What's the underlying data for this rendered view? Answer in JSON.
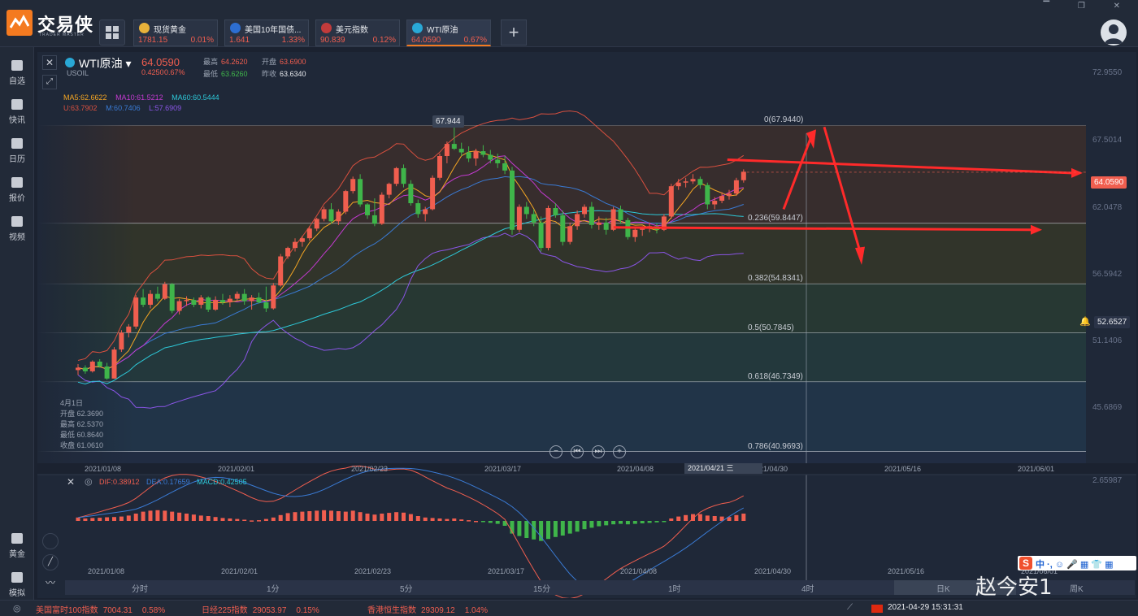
{
  "app": {
    "name": "交易侠",
    "subtitle": "TRADER MASTER",
    "window_controls": "▔ ❐ ✕"
  },
  "tickers": [
    {
      "name": "现货黄金",
      "price": "1781.15",
      "change": "0.01%",
      "icon_color": "#e8b23a"
    },
    {
      "name": "美国10年国债...",
      "price": "1.641",
      "change": "1.33%",
      "icon_color": "#2d6ed1"
    },
    {
      "name": "美元指数",
      "price": "90.839",
      "change": "0.12%",
      "icon_color": "#c23b3b"
    },
    {
      "name": "WTI原油",
      "price": "64.0590",
      "change": "0.67%",
      "icon_color": "#29a8d6"
    }
  ],
  "add_tab": "+",
  "nav": [
    {
      "label": "自选"
    },
    {
      "label": "快讯"
    },
    {
      "label": "日历"
    },
    {
      "label": "报价"
    },
    {
      "label": "视频"
    },
    {
      "label": "黄金"
    },
    {
      "label": "模拟"
    }
  ],
  "symbol": {
    "name": "WTI原油 ▾",
    "code": "USOIL",
    "last": "64.0590",
    "change_abs": "0.4250",
    "change_pct": "0.67%",
    "high_label": "最高",
    "high": "64.2620",
    "open_label": "开盘",
    "open": "63.6900",
    "low_label": "最低",
    "low": "63.6260",
    "prev_label": "昨收",
    "prev": "63.6340"
  },
  "ma": {
    "ma5": "MA5:62.6622",
    "ma10": "MA10:61.5212",
    "ma60": "MA60:60.5444",
    "u": "U:63.7902",
    "m": "M:60.7406",
    "l": "L:57.6909"
  },
  "peak_label": "67.944",
  "fib": [
    {
      "label": "0(67.9440)",
      "price": 67.944
    },
    {
      "label": "0.236(59.8447)",
      "price": 59.8447
    },
    {
      "label": "0.382(54.8341)",
      "price": 54.8341
    },
    {
      "label": "0.5(50.7845)",
      "price": 50.7845
    },
    {
      "label": "0.618(46.7349)",
      "price": 46.7349
    },
    {
      "label": "0.786(40.9693)",
      "price": 40.9693
    }
  ],
  "y_axis": [
    "72.9550",
    "67.5014",
    "62.0478",
    "56.5942",
    "51.1406",
    "45.6869"
  ],
  "current_price_tag": "64.0590",
  "alert_price_tag": "52.6527",
  "hover": {
    "date": "4月1日",
    "open": "开盘 62.3690",
    "high": "最高 62.5370",
    "low": "最低 60.8640",
    "close": "收盘 61.0610"
  },
  "nav_controls": [
    "−",
    "⏮",
    "⏭",
    "+"
  ],
  "x_dates": [
    "2021/01/08",
    "2021/02/01",
    "2021/02/23",
    "2021/03/17",
    "2021/04/08",
    "2021/04/30",
    "2021/05/16",
    "2021/06/01"
  ],
  "crosshair_date": "2021/04/21 三",
  "macd": {
    "close": "✕",
    "settings": "◎",
    "dif": "DIF:0.38912",
    "dea": "DEA:0.17659",
    "macd": "MACD:0.42505",
    "top": "2.65987"
  },
  "macd_dates": [
    "2021/01/08",
    "2021/02/01",
    "2021/02/23",
    "2021/03/17",
    "2021/04/08",
    "2021/04/30",
    "2021/05/16",
    "2021/06/01"
  ],
  "periods": [
    "分时",
    "1分",
    "5分",
    "15分",
    "1时",
    "4时",
    "日K",
    "周K"
  ],
  "status": [
    {
      "name": "美国富时100指数",
      "value": "7004.31",
      "change": "0.58%"
    },
    {
      "name": "日经225指数",
      "value": "29053.97",
      "change": "0.15%"
    },
    {
      "name": "香港恒生指数",
      "value": "29309.12",
      "change": "1.04%"
    }
  ],
  "datetime": "2021-04-29 15:31:31",
  "watermark": "赵今安1",
  "ime": {
    "s": "S",
    "zh": "中 ·, ☺ 🎤 ▦ 👕 ▦"
  },
  "colors": {
    "up": "#f05e4f",
    "down": "#3fb54a",
    "accent": "#f47a20",
    "ma5": "#f5a623",
    "ma10": "#c43ad1",
    "ma60": "#2dc8d8",
    "boll_u": "#d9503f",
    "boll_m": "#3a7bd5",
    "boll_l": "#8a55e6"
  },
  "chart_data": {
    "type": "candlestick",
    "title": "WTI原油",
    "x_start": "2021/01/05",
    "ylim": [
      40.0,
      74.0
    ],
    "fib_high": 67.944,
    "candles": [
      [
        47.7,
        48.2,
        47.3,
        47.9
      ],
      [
        47.9,
        48.1,
        47.4,
        47.6
      ],
      [
        47.6,
        48.5,
        47.5,
        48.4
      ],
      [
        48.4,
        48.6,
        47.9,
        48.0
      ],
      [
        48.0,
        48.3,
        46.9,
        47.0
      ],
      [
        47.0,
        49.6,
        47.0,
        49.4
      ],
      [
        49.4,
        51.0,
        49.2,
        50.8
      ],
      [
        50.8,
        51.5,
        50.4,
        51.3
      ],
      [
        51.3,
        53.9,
        51.1,
        53.7
      ],
      [
        53.7,
        54.4,
        52.9,
        53.1
      ],
      [
        53.1,
        54.3,
        52.8,
        54.0
      ],
      [
        54.0,
        54.6,
        53.4,
        53.6
      ],
      [
        53.6,
        55.0,
        53.5,
        54.8
      ],
      [
        54.8,
        54.9,
        52.4,
        52.6
      ],
      [
        52.6,
        53.6,
        52.3,
        53.4
      ],
      [
        53.4,
        53.8,
        53.0,
        53.5
      ],
      [
        53.5,
        53.7,
        52.9,
        53.1
      ],
      [
        53.1,
        53.9,
        52.8,
        53.7
      ],
      [
        53.7,
        53.8,
        52.5,
        52.7
      ],
      [
        52.7,
        53.8,
        52.6,
        53.5
      ],
      [
        53.5,
        54.0,
        53.1,
        53.3
      ],
      [
        53.3,
        53.9,
        52.9,
        53.6
      ],
      [
        53.6,
        54.2,
        53.4,
        54.0
      ],
      [
        54.0,
        54.4,
        53.1,
        53.4
      ],
      [
        53.4,
        53.9,
        52.7,
        53.7
      ],
      [
        53.7,
        54.1,
        53.2,
        53.3
      ],
      [
        53.3,
        54.6,
        52.5,
        52.8
      ],
      [
        52.8,
        54.9,
        52.7,
        54.7
      ],
      [
        54.7,
        57.3,
        54.6,
        57.1
      ],
      [
        57.1,
        57.9,
        56.9,
        57.8
      ],
      [
        57.8,
        58.6,
        57.5,
        58.3
      ],
      [
        58.3,
        58.8,
        57.9,
        58.6
      ],
      [
        58.6,
        59.6,
        58.4,
        59.4
      ],
      [
        59.4,
        60.3,
        59.2,
        60.2
      ],
      [
        60.2,
        61.2,
        60.0,
        61.0
      ],
      [
        61.0,
        61.5,
        59.8,
        60.0
      ],
      [
        60.0,
        61.0,
        59.7,
        60.8
      ],
      [
        60.8,
        62.6,
        60.6,
        62.5
      ],
      [
        62.5,
        63.7,
        62.3,
        63.5
      ],
      [
        63.5,
        63.9,
        61.2,
        61.4
      ],
      [
        61.4,
        61.5,
        60.2,
        60.5
      ],
      [
        60.5,
        61.9,
        59.6,
        59.8
      ],
      [
        59.8,
        62.4,
        59.7,
        62.2
      ],
      [
        62.2,
        63.2,
        61.9,
        63.1
      ],
      [
        63.1,
        64.5,
        62.9,
        64.4
      ],
      [
        64.4,
        64.7,
        62.8,
        63.1
      ],
      [
        63.1,
        63.4,
        61.3,
        61.5
      ],
      [
        61.5,
        61.8,
        60.3,
        60.6
      ],
      [
        60.6,
        61.2,
        60.0,
        61.0
      ],
      [
        61.0,
        63.8,
        60.9,
        63.6
      ],
      [
        63.6,
        65.6,
        63.4,
        65.4
      ],
      [
        65.4,
        66.6,
        64.8,
        66.4
      ],
      [
        66.4,
        67.944,
        65.9,
        66.0
      ],
      [
        66.0,
        66.5,
        65.4,
        65.7
      ],
      [
        65.7,
        66.2,
        64.9,
        65.2
      ],
      [
        65.2,
        66.0,
        64.6,
        65.8
      ],
      [
        65.8,
        66.3,
        65.3,
        65.5
      ],
      [
        65.5,
        65.9,
        64.8,
        65.1
      ],
      [
        65.1,
        65.6,
        64.4,
        64.8
      ],
      [
        64.8,
        65.4,
        63.9,
        64.2
      ],
      [
        64.2,
        64.5,
        58.9,
        59.3
      ],
      [
        59.3,
        61.4,
        59.1,
        61.2
      ],
      [
        61.2,
        61.6,
        60.2,
        60.6
      ],
      [
        60.6,
        61.0,
        59.6,
        59.9
      ],
      [
        59.9,
        60.4,
        57.5,
        57.8
      ],
      [
        57.8,
        61.3,
        57.6,
        61.1
      ],
      [
        61.1,
        61.5,
        60.3,
        60.5
      ],
      [
        60.5,
        60.9,
        58.0,
        58.3
      ],
      [
        58.3,
        59.9,
        58.1,
        59.6
      ],
      [
        59.6,
        60.9,
        59.3,
        60.6
      ],
      [
        60.6,
        61.4,
        60.3,
        61.2
      ],
      [
        61.2,
        61.6,
        59.4,
        59.7
      ],
      [
        59.7,
        60.4,
        59.3,
        59.9
      ],
      [
        59.9,
        60.3,
        58.9,
        59.3
      ],
      [
        59.3,
        61.2,
        59.2,
        61.0
      ],
      [
        61.0,
        61.3,
        59.8,
        60.1
      ],
      [
        60.1,
        60.3,
        58.5,
        58.7
      ],
      [
        58.7,
        59.5,
        58.3,
        59.3
      ],
      [
        59.3,
        59.6,
        58.8,
        59.4
      ],
      [
        59.4,
        59.9,
        59.1,
        59.6
      ],
      [
        59.6,
        59.8,
        59.0,
        59.3
      ],
      [
        59.3,
        60.6,
        59.2,
        60.4
      ],
      [
        60.4,
        63.1,
        60.2,
        62.9
      ],
      [
        62.9,
        63.5,
        62.6,
        63.2
      ],
      [
        63.2,
        63.6,
        62.8,
        63.3
      ],
      [
        63.3,
        63.9,
        63.1,
        63.5
      ],
      [
        63.5,
        63.7,
        62.7,
        63.0
      ],
      [
        63.0,
        63.2,
        61.0,
        61.4
      ],
      [
        61.4,
        62.0,
        61.0,
        61.7
      ],
      [
        61.7,
        62.4,
        61.5,
        62.1
      ],
      [
        62.1,
        62.6,
        61.8,
        62.3
      ],
      [
        62.3,
        63.6,
        62.1,
        63.4
      ],
      [
        63.4,
        64.3,
        63.2,
        64.1
      ]
    ],
    "macd_hist": [
      0.14,
      0.1,
      0.12,
      0.13,
      0.15,
      0.16,
      0.18,
      0.22,
      0.3,
      0.38,
      0.42,
      0.44,
      0.42,
      0.38,
      0.34,
      0.3,
      0.26,
      0.22,
      0.2,
      0.16,
      0.12,
      0.1,
      0.08,
      0.05,
      0.02,
      0.03,
      0.08,
      0.14,
      0.24,
      0.32,
      0.36,
      0.38,
      0.4,
      0.42,
      0.44,
      0.42,
      0.4,
      0.38,
      0.42,
      0.36,
      0.3,
      0.26,
      0.3,
      0.33,
      0.36,
      0.34,
      0.28,
      0.2,
      0.14,
      0.12,
      0.1,
      0.08,
      0.1,
      0.06,
      0.03,
      0.0,
      -0.04,
      -0.08,
      -0.12,
      -0.2,
      -0.52,
      -0.62,
      -0.7,
      -0.76,
      -0.82,
      -0.74,
      -0.66,
      -0.6,
      -0.52,
      -0.44,
      -0.34,
      -0.28,
      -0.22,
      -0.18,
      -0.14,
      -0.12,
      -0.14,
      -0.12,
      -0.1,
      -0.08,
      -0.06,
      -0.02,
      0.1,
      0.18,
      0.24,
      0.28,
      0.28,
      0.22,
      0.2,
      0.18,
      0.16,
      0.24,
      0.3
    ],
    "series": [
      {
        "name": "MA5"
      },
      {
        "name": "MA10"
      },
      {
        "name": "MA60"
      },
      {
        "name": "BOLL"
      },
      {
        "name": "MACD"
      }
    ]
  }
}
